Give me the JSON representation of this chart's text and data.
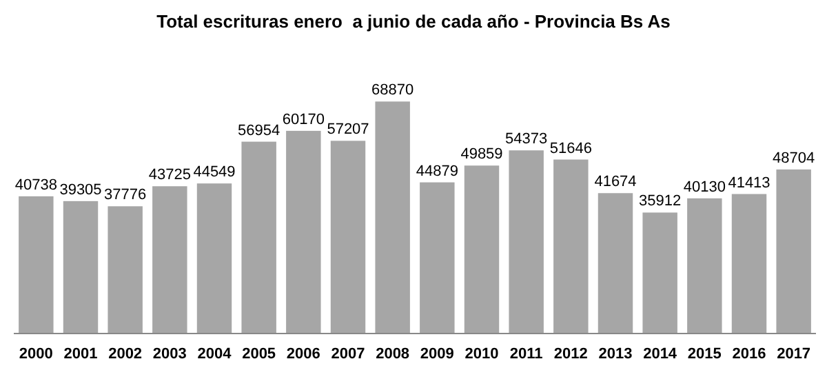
{
  "chart_data": {
    "type": "bar",
    "title": "Total escrituras enero  a junio de cada año - Provincia Bs As",
    "categories": [
      "2000",
      "2001",
      "2002",
      "2003",
      "2004",
      "2005",
      "2006",
      "2007",
      "2008",
      "2009",
      "2010",
      "2011",
      "2012",
      "2013",
      "2014",
      "2015",
      "2016",
      "2017"
    ],
    "values": [
      40738,
      39305,
      37776,
      43725,
      44549,
      56954,
      60170,
      57207,
      68870,
      44879,
      49859,
      54373,
      51646,
      41674,
      35912,
      40130,
      41413,
      48704
    ],
    "color": "#a6a6a6",
    "data_labels": true,
    "grid": false
  }
}
